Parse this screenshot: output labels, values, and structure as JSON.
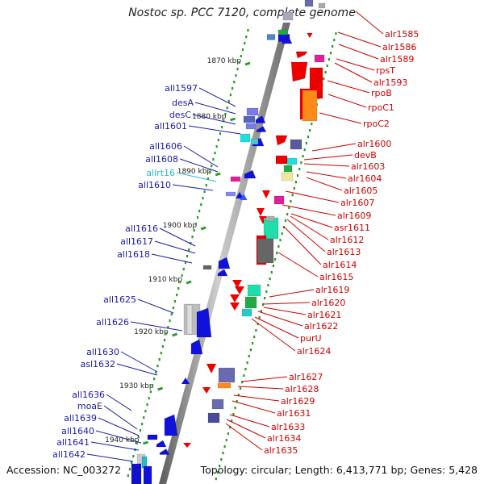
{
  "title": "Nostoc sp. PCC 7120, complete genome",
  "accession_label": "Accession: NC_003272",
  "summary_label": "Topology: circular; Length: 6,413,771 bp; Genes: 5,428",
  "kbp_ticks": [
    "1870 kbp",
    "1880 kbp",
    "1890 kbp",
    "1900 kbp",
    "1910 kbp",
    "1920 kbp",
    "1930 kbp",
    "1940 kbp"
  ],
  "left_labels": [
    "all1597",
    "desA",
    "desC",
    "all1601",
    "all1606",
    "all1608",
    "allrt16",
    "all1610",
    "all1616",
    "all1617",
    "all1618",
    "all1625",
    "all1626",
    "all1630",
    "asl1632",
    "all1636",
    "moaE",
    "all1639",
    "all1640",
    "all1641",
    "all1642"
  ],
  "right_labels": [
    "alr1585",
    "alr1586",
    "alr1589",
    "rpsT",
    "alr1593",
    "rpoB",
    "rpoC1",
    "rpoC2",
    "alr1600",
    "devB",
    "alr1603",
    "alr1604",
    "alr1605",
    "alr1607",
    "alr1609",
    "asr1611",
    "alr1612",
    "alr1613",
    "alr1614",
    "alr1615",
    "alr1619",
    "alr1620",
    "alr1621",
    "alr1622",
    "purU",
    "alr1624",
    "alr1627",
    "alr1628",
    "alr1629",
    "alr1631",
    "alr1633",
    "alr1634",
    "alr1635"
  ],
  "colors": {
    "reverse_strand_label": "#1a1aaa",
    "forward_strand_label": "#cc0000",
    "rna_label": "#22bbcc",
    "backbone": "#8a8a8a",
    "tick": "#2a9a2a"
  }
}
